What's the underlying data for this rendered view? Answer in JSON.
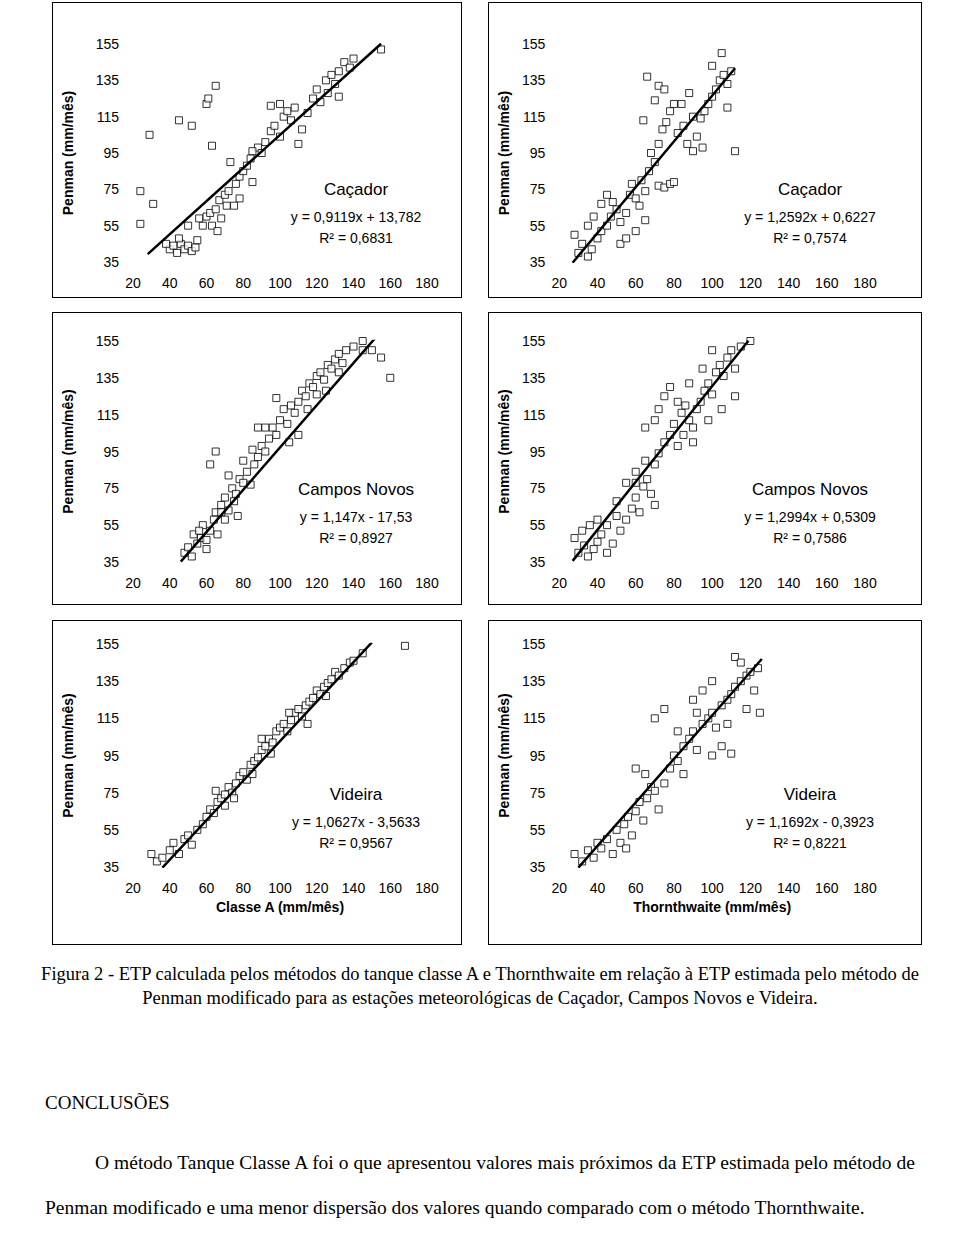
{
  "chart_data": [
    {
      "type": "scatter",
      "title": "Caçador",
      "annotations": [
        "y = 0,9119x + 13,782",
        "R² = 0,6831"
      ],
      "y_label": "Penman (mm/mês)",
      "x": [
        24,
        31,
        24,
        29,
        45,
        52,
        60,
        61,
        65,
        63,
        40,
        42,
        44,
        46,
        48,
        50,
        52,
        54,
        45,
        38,
        55,
        58,
        60,
        62,
        63,
        65,
        67,
        70,
        72,
        71,
        68,
        75,
        76,
        78,
        80,
        82,
        84,
        85,
        88,
        90,
        92,
        95,
        97,
        100,
        102,
        104,
        106,
        108,
        110,
        112,
        115,
        118,
        120,
        122,
        125,
        128,
        130,
        132,
        135,
        138,
        140,
        132,
        126,
        155,
        100,
        95,
        85,
        78,
        73,
        66,
        56,
        50
      ],
      "values": [
        74,
        67,
        56,
        105,
        113,
        110,
        122,
        125,
        132,
        99,
        42,
        44,
        40,
        45,
        42,
        44,
        41,
        43,
        48,
        45,
        47,
        55,
        60,
        62,
        55,
        64,
        69,
        72,
        74,
        66,
        59,
        66,
        78,
        82,
        85,
        88,
        92,
        79,
        98,
        95,
        101,
        107,
        110,
        104,
        115,
        118,
        113,
        120,
        100,
        108,
        117,
        125,
        130,
        123,
        135,
        138,
        133,
        140,
        145,
        142,
        147,
        126,
        128,
        152,
        122,
        121,
        96,
        70,
        90,
        52,
        59,
        55
      ],
      "fit": {
        "slope": 0.9119,
        "intercept": 13.782,
        "x": [
          28,
          155
        ]
      },
      "xlim": [
        20,
        180
      ],
      "xticks": [
        20,
        40,
        60,
        80,
        100,
        120,
        140,
        160,
        180
      ],
      "ylim": [
        35,
        155
      ],
      "yticks": [
        35,
        55,
        75,
        95,
        115,
        135,
        155
      ],
      "grid": false,
      "marker": "square",
      "color": "#000000"
    },
    {
      "type": "scatter",
      "title": "Caçador",
      "annotations": [
        "y = 1,2592x + 0,6227",
        "R² = 0,7574"
      ],
      "y_label": "Penman (mm/mês)",
      "x": [
        30,
        32,
        35,
        37,
        28,
        40,
        42,
        45,
        47,
        50,
        52,
        48,
        55,
        57,
        60,
        62,
        58,
        63,
        65,
        67,
        70,
        72,
        75,
        78,
        80,
        68,
        72,
        74,
        76,
        78,
        80,
        82,
        85,
        87,
        90,
        92,
        94,
        96,
        98,
        100,
        102,
        104,
        106,
        108,
        110,
        105,
        100,
        95,
        88,
        70,
        72,
        66,
        64,
        75,
        84,
        90,
        35,
        45,
        52,
        60,
        112,
        108,
        65,
        55,
        38,
        42
      ],
      "values": [
        40,
        45,
        38,
        42,
        50,
        48,
        52,
        55,
        60,
        64,
        57,
        68,
        62,
        72,
        70,
        66,
        78,
        80,
        74,
        85,
        90,
        77,
        76,
        78,
        79,
        95,
        100,
        108,
        112,
        118,
        122,
        106,
        110,
        100,
        96,
        104,
        114,
        118,
        122,
        126,
        130,
        135,
        138,
        133,
        140,
        150,
        143,
        98,
        128,
        124,
        132,
        137,
        113,
        130,
        122,
        115,
        55,
        72,
        45,
        52,
        96,
        120,
        58,
        48,
        60,
        67
      ],
      "fit": {
        "slope": 1.2592,
        "intercept": 0.6227,
        "x": [
          27,
          112
        ]
      },
      "xlim": [
        20,
        180
      ],
      "xticks": [
        20,
        40,
        60,
        80,
        100,
        120,
        140,
        160,
        180
      ],
      "ylim": [
        35,
        155
      ],
      "yticks": [
        35,
        55,
        75,
        95,
        115,
        135,
        155
      ],
      "grid": false,
      "marker": "square",
      "color": "#000000"
    },
    {
      "type": "scatter",
      "title": "Campos Novos",
      "annotations": [
        "y = 1,147x - 17,53",
        "R² = 0,8927"
      ],
      "y_label": "Penman (mm/mês)",
      "x": [
        48,
        50,
        52,
        55,
        53,
        57,
        60,
        58,
        62,
        64,
        66,
        60,
        56,
        65,
        68,
        70,
        72,
        74,
        76,
        78,
        80,
        82,
        84,
        75,
        70,
        86,
        88,
        90,
        92,
        94,
        96,
        98,
        100,
        102,
        104,
        106,
        108,
        110,
        112,
        114,
        116,
        118,
        120,
        122,
        124,
        126,
        128,
        130,
        132,
        134,
        136,
        140,
        145,
        150,
        155,
        160,
        98,
        105,
        115,
        125,
        92,
        85,
        80,
        72,
        65,
        68,
        62,
        77,
        88,
        110,
        120,
        132,
        145
      ],
      "values": [
        40,
        43,
        38,
        45,
        50,
        48,
        42,
        55,
        52,
        58,
        50,
        47,
        52,
        62,
        66,
        70,
        63,
        75,
        72,
        80,
        78,
        84,
        77,
        68,
        58,
        88,
        92,
        98,
        95,
        102,
        108,
        104,
        112,
        118,
        110,
        120,
        116,
        122,
        128,
        125,
        132,
        130,
        136,
        138,
        134,
        142,
        140,
        145,
        148,
        143,
        150,
        152,
        155,
        150,
        146,
        135,
        124,
        100,
        118,
        128,
        108,
        96,
        90,
        82,
        95,
        62,
        88,
        60,
        108,
        104,
        126,
        138,
        150
      ],
      "fit": {
        "slope": 1.147,
        "intercept": -17.53,
        "x": [
          46,
          152
        ]
      },
      "xlim": [
        20,
        180
      ],
      "xticks": [
        20,
        40,
        60,
        80,
        100,
        120,
        140,
        160,
        180
      ],
      "ylim": [
        35,
        155
      ],
      "yticks": [
        35,
        55,
        75,
        95,
        115,
        135,
        155
      ],
      "grid": false,
      "marker": "square",
      "color": "#000000"
    },
    {
      "type": "scatter",
      "title": "Campos Novos",
      "annotations": [
        "y = 1,2994x + 0,5309",
        "R² = 0,7586"
      ],
      "y_label": "Penman (mm/mês)",
      "x": [
        30,
        33,
        35,
        38,
        40,
        28,
        32,
        36,
        42,
        45,
        45,
        48,
        50,
        52,
        55,
        58,
        60,
        62,
        64,
        66,
        68,
        70,
        55,
        60,
        65,
        70,
        72,
        75,
        78,
        80,
        82,
        84,
        86,
        88,
        90,
        92,
        94,
        96,
        98,
        100,
        102,
        104,
        106,
        108,
        110,
        112,
        115,
        120,
        75,
        78,
        82,
        88,
        95,
        100,
        105,
        112,
        70,
        65,
        72,
        90,
        85,
        60,
        50,
        40,
        98
      ],
      "values": [
        40,
        44,
        38,
        42,
        46,
        48,
        52,
        55,
        50,
        40,
        55,
        45,
        60,
        52,
        58,
        64,
        70,
        62,
        76,
        80,
        72,
        66,
        78,
        84,
        90,
        88,
        94,
        100,
        104,
        110,
        98,
        116,
        120,
        112,
        108,
        118,
        122,
        128,
        132,
        126,
        138,
        142,
        136,
        146,
        150,
        140,
        152,
        155,
        125,
        130,
        122,
        132,
        140,
        150,
        118,
        125,
        112,
        108,
        118,
        100,
        104,
        78,
        68,
        58,
        112
      ],
      "fit": {
        "slope": 1.2994,
        "intercept": 0.5309,
        "x": [
          27,
          119
        ]
      },
      "xlim": [
        20,
        180
      ],
      "xticks": [
        20,
        40,
        60,
        80,
        100,
        120,
        140,
        160,
        180
      ],
      "ylim": [
        35,
        155
      ],
      "yticks": [
        35,
        55,
        75,
        95,
        115,
        135,
        155
      ],
      "grid": false,
      "marker": "square",
      "color": "#000000"
    },
    {
      "type": "scatter",
      "title": "Videira",
      "annotations": [
        "y = 1,0627x - 3,5633",
        "R² = 0,9567"
      ],
      "y_label": "Penman (mm/mês)",
      "x_label": "Classe A (mm/mês)",
      "x": [
        30,
        33,
        36,
        40,
        42,
        45,
        48,
        50,
        52,
        55,
        58,
        60,
        62,
        64,
        66,
        68,
        70,
        72,
        74,
        76,
        78,
        80,
        82,
        84,
        86,
        88,
        90,
        92,
        94,
        96,
        98,
        100,
        102,
        104,
        106,
        108,
        110,
        112,
        114,
        116,
        118,
        120,
        122,
        124,
        126,
        128,
        130,
        132,
        135,
        138,
        140,
        145,
        168,
        65,
        75,
        85,
        95,
        105,
        115,
        125,
        90,
        70
      ],
      "values": [
        42,
        38,
        40,
        44,
        48,
        42,
        50,
        52,
        47,
        55,
        58,
        62,
        66,
        64,
        70,
        72,
        74,
        78,
        75,
        80,
        84,
        86,
        82,
        90,
        92,
        94,
        98,
        100,
        104,
        102,
        108,
        110,
        112,
        108,
        114,
        118,
        120,
        116,
        122,
        124,
        126,
        130,
        128,
        132,
        134,
        136,
        140,
        138,
        142,
        145,
        146,
        150,
        154,
        76,
        72,
        85,
        96,
        118,
        112,
        127,
        104,
        68
      ],
      "fit": {
        "slope": 1.0627,
        "intercept": -3.5633,
        "x": [
          36,
          150
        ]
      },
      "xlim": [
        20,
        180
      ],
      "xticks": [
        20,
        40,
        60,
        80,
        100,
        120,
        140,
        160,
        180
      ],
      "ylim": [
        35,
        155
      ],
      "yticks": [
        35,
        55,
        75,
        95,
        115,
        135,
        155
      ],
      "grid": false,
      "marker": "square",
      "color": "#000000"
    },
    {
      "type": "scatter",
      "title": "Videira",
      "annotations": [
        "y = 1,1692x - 0,3923",
        "R² = 0,8221"
      ],
      "y_label": "Penman (mm/mês)",
      "x_label": "Thornthwaite (mm/mês)",
      "x": [
        28,
        32,
        35,
        38,
        40,
        42,
        45,
        48,
        50,
        52,
        54,
        56,
        58,
        60,
        62,
        64,
        66,
        68,
        70,
        65,
        72,
        75,
        78,
        80,
        82,
        85,
        88,
        90,
        92,
        95,
        98,
        100,
        102,
        105,
        108,
        110,
        112,
        115,
        118,
        120,
        122,
        124,
        125,
        100,
        105,
        110,
        90,
        95,
        100,
        112,
        115,
        70,
        75,
        82,
        60,
        55,
        118,
        85,
        92,
        108
      ],
      "values": [
        42,
        38,
        44,
        40,
        48,
        45,
        50,
        42,
        55,
        48,
        58,
        62,
        52,
        65,
        70,
        60,
        72,
        78,
        76,
        85,
        66,
        80,
        88,
        95,
        92,
        100,
        104,
        108,
        98,
        112,
        115,
        118,
        110,
        122,
        125,
        128,
        132,
        135,
        138,
        140,
        130,
        142,
        118,
        95,
        100,
        96,
        125,
        130,
        135,
        148,
        145,
        115,
        120,
        108,
        88,
        45,
        120,
        85,
        118,
        112
      ],
      "fit": {
        "slope": 1.1692,
        "intercept": -0.3923,
        "x": [
          30,
          126
        ]
      },
      "xlim": [
        20,
        180
      ],
      "xticks": [
        20,
        40,
        60,
        80,
        100,
        120,
        140,
        160,
        180
      ],
      "ylim": [
        35,
        155
      ],
      "yticks": [
        35,
        55,
        75,
        95,
        115,
        135,
        155
      ],
      "grid": false,
      "marker": "square",
      "color": "#000000"
    }
  ],
  "caption": "Figura 2 - ETP calculada pelos métodos do tanque classe A e Thornthwaite em relação à ETP estimada pelo método de Penman modificado para as estações meteorológicas de Caçador, Campos Novos e Videira.",
  "conclusions": {
    "heading": "CONCLUSÕES",
    "text": "O método Tanque Classe A foi o que apresentou valores mais próximos da ETP estimada pelo método de Penman modificado e uma menor dispersão dos valores quando comparado com o método Thornthwaite."
  }
}
